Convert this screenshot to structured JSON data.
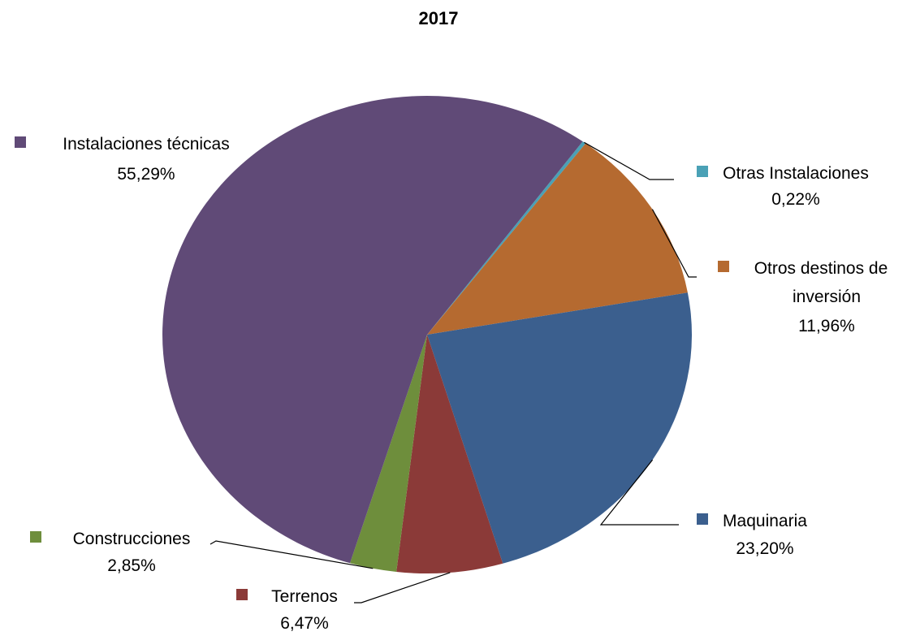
{
  "chart_data": {
    "type": "pie",
    "title": "2017",
    "unit": "%",
    "legend": "labels next to slices",
    "slices": [
      {
        "label": "Otras Instalaciones",
        "value_text": "0,22%",
        "value": 0.22,
        "color": "#4aa1b6"
      },
      {
        "label": "Otros destinos de inversión",
        "value_text": "11,96%",
        "value": 11.96,
        "color": "#b56a30"
      },
      {
        "label": "Maquinaria",
        "value_text": "23,20%",
        "value": 23.2,
        "color": "#3b5f8e"
      },
      {
        "label": "Terrenos",
        "value_text": "6,47%",
        "value": 6.47,
        "color": "#8b3a38"
      },
      {
        "label": "Construcciones",
        "value_text": "2,85%",
        "value": 2.85,
        "color": "#6e8e3c"
      },
      {
        "label": "Instalaciones técnicas",
        "value_text": "55,29%",
        "value": 55.29,
        "color": "#604a77"
      }
    ]
  }
}
